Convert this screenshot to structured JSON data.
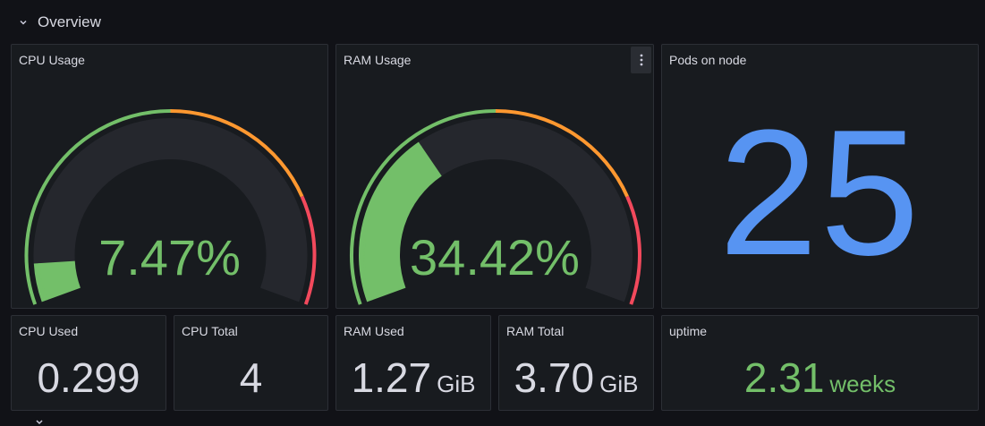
{
  "row": {
    "title": "Overview"
  },
  "cpu_gauge": {
    "title": "CPU Usage",
    "value_text": "7.47%",
    "percent": 7.47
  },
  "ram_gauge": {
    "title": "RAM Usage",
    "value_text": "34.42%",
    "percent": 34.42
  },
  "pods": {
    "title": "Pods on node",
    "value": "25"
  },
  "cpu_used": {
    "title": "CPU Used",
    "value": "0.299"
  },
  "cpu_total": {
    "title": "CPU Total",
    "value": "4"
  },
  "ram_used": {
    "title": "RAM Used",
    "value": "1.27",
    "unit": "GiB"
  },
  "ram_total": {
    "title": "RAM Total",
    "value": "3.70",
    "unit": "GiB"
  },
  "uptime": {
    "title": "uptime",
    "value": "2.31",
    "unit": "weeks"
  },
  "colors": {
    "green": "#73bf69",
    "orange": "#ff9830",
    "red": "#f2495c",
    "blue": "#5794f2",
    "track": "#25272d"
  },
  "icons": {
    "row_toggle": "chevron-down-icon",
    "panel_menu": "kebab-menu-icon"
  }
}
